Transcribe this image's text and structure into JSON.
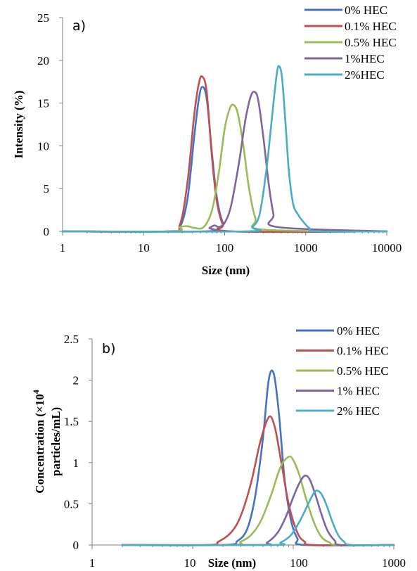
{
  "chart_data": [
    {
      "type": "line",
      "panel_label": "a)",
      "title": "",
      "xlabel": "Size (nm)",
      "ylabel": "Intensity (%)",
      "x_scale": "log",
      "xlim": [
        1,
        10000
      ],
      "ylim": [
        0,
        25
      ],
      "x_ticks": [
        "1",
        "10",
        "100",
        "1000",
        "10000"
      ],
      "y_ticks": [
        "0",
        "5",
        "10",
        "15",
        "20",
        "25"
      ],
      "grid": false,
      "legend_position": "top-right",
      "series": [
        {
          "name": "0% HEC",
          "color": "#4472C4",
          "x": [
            1,
            20,
            28,
            35,
            42,
            48,
            53,
            60,
            70,
            80,
            95,
            120,
            10000
          ],
          "y": [
            0,
            0,
            0.5,
            4,
            11,
            15.5,
            16.9,
            15.5,
            9,
            4,
            1,
            0,
            0
          ]
        },
        {
          "name": "0.1% HEC",
          "color": "#C0504D",
          "x": [
            1,
            20,
            28,
            35,
            42,
            48,
            53,
            60,
            70,
            80,
            95,
            120,
            10000
          ],
          "y": [
            0,
            0,
            0.8,
            6,
            13.5,
            17.3,
            18.1,
            16.3,
            8.5,
            3.5,
            0.8,
            0,
            0
          ]
        },
        {
          "name": "0.5% HEC",
          "color": "#9BBB59",
          "x": [
            1,
            22,
            28,
            35,
            42,
            55,
            70,
            85,
            100,
            115,
            128,
            145,
            170,
            200,
            240,
            300,
            10000
          ],
          "y": [
            0,
            0,
            0.5,
            0.6,
            0.4,
            0.5,
            2.5,
            7,
            12,
            14.3,
            14.8,
            13.8,
            10,
            5,
            1.5,
            0.2,
            0
          ]
        },
        {
          "name": "1%HEC",
          "color": "#8064A2",
          "x": [
            1,
            55,
            65,
            75,
            85,
            100,
            120,
            150,
            180,
            210,
            235,
            260,
            300,
            350,
            400,
            450,
            10000
          ],
          "y": [
            0,
            0,
            0.4,
            0.7,
            0.5,
            1,
            3,
            8,
            13,
            15.8,
            16.3,
            15.3,
            11,
            5.5,
            2,
            0.5,
            0
          ]
        },
        {
          "name": "2%HEC",
          "color": "#4BACC6",
          "x": [
            1,
            180,
            220,
            270,
            330,
            390,
            440,
            470,
            510,
            560,
            620,
            700,
            800,
            900,
            1100,
            1400,
            10000
          ],
          "y": [
            0,
            0,
            0.5,
            2,
            7.5,
            14,
            18.5,
            19.3,
            18,
            13,
            7,
            3.2,
            2,
            1.3,
            0.4,
            0,
            0
          ]
        }
      ]
    },
    {
      "type": "line",
      "panel_label": "b)",
      "title": "",
      "xlabel": "Size (nm)",
      "ylabel_line1": "Concentration (×10",
      "ylabel_sup": "4",
      "ylabel_line2": "particles/mL)",
      "x_scale": "log",
      "xlim": [
        1,
        1000
      ],
      "ylim": [
        0,
        2.5
      ],
      "x_ticks": [
        "1",
        "10",
        "100",
        "1000"
      ],
      "y_ticks": [
        "0",
        "0.5",
        "1",
        "1.5",
        "2",
        "2.5"
      ],
      "grid": false,
      "legend_position": "top-right",
      "series": [
        {
          "name": "0% HEC",
          "color": "#4472C4",
          "x": [
            2,
            20,
            28,
            35,
            42,
            50,
            57,
            64,
            72,
            82,
            95,
            110,
            130,
            1000
          ],
          "y": [
            0,
            0,
            0.05,
            0.2,
            0.6,
            1.3,
            2.0,
            2.08,
            1.6,
            0.8,
            0.3,
            0.08,
            0,
            0
          ]
        },
        {
          "name": "0.1% HEC",
          "color": "#C0504D",
          "x": [
            2,
            14,
            18,
            24,
            30,
            38,
            47,
            57,
            65,
            75,
            90,
            110,
            130,
            160,
            1000
          ],
          "y": [
            0,
            0,
            0.04,
            0.15,
            0.35,
            0.75,
            1.25,
            1.55,
            1.45,
            1.05,
            0.5,
            0.15,
            0.04,
            0,
            0
          ]
        },
        {
          "name": "0.5% HEC",
          "color": "#9BBB59",
          "x": [
            2,
            24,
            30,
            38,
            48,
            60,
            75,
            90,
            100,
            115,
            135,
            160,
            190,
            230,
            280,
            1000
          ],
          "y": [
            0,
            0,
            0.04,
            0.12,
            0.3,
            0.6,
            0.95,
            1.07,
            1.03,
            0.85,
            0.55,
            0.28,
            0.1,
            0.03,
            0,
            0
          ]
        },
        {
          "name": "1% HEC",
          "color": "#8064A2",
          "x": [
            2,
            45,
            55,
            70,
            85,
            100,
            115,
            130,
            145,
            165,
            190,
            220,
            260,
            300,
            1000
          ],
          "y": [
            0,
            0,
            0.03,
            0.15,
            0.35,
            0.58,
            0.75,
            0.84,
            0.8,
            0.62,
            0.38,
            0.17,
            0.05,
            0,
            0
          ]
        },
        {
          "name": "2% HEC",
          "color": "#4BACC6",
          "x": [
            2,
            60,
            75,
            95,
            115,
            135,
            155,
            170,
            190,
            215,
            245,
            280,
            320,
            380,
            1000
          ],
          "y": [
            0,
            0,
            0.03,
            0.12,
            0.28,
            0.45,
            0.6,
            0.66,
            0.62,
            0.48,
            0.28,
            0.12,
            0.04,
            0,
            0
          ]
        }
      ]
    }
  ]
}
